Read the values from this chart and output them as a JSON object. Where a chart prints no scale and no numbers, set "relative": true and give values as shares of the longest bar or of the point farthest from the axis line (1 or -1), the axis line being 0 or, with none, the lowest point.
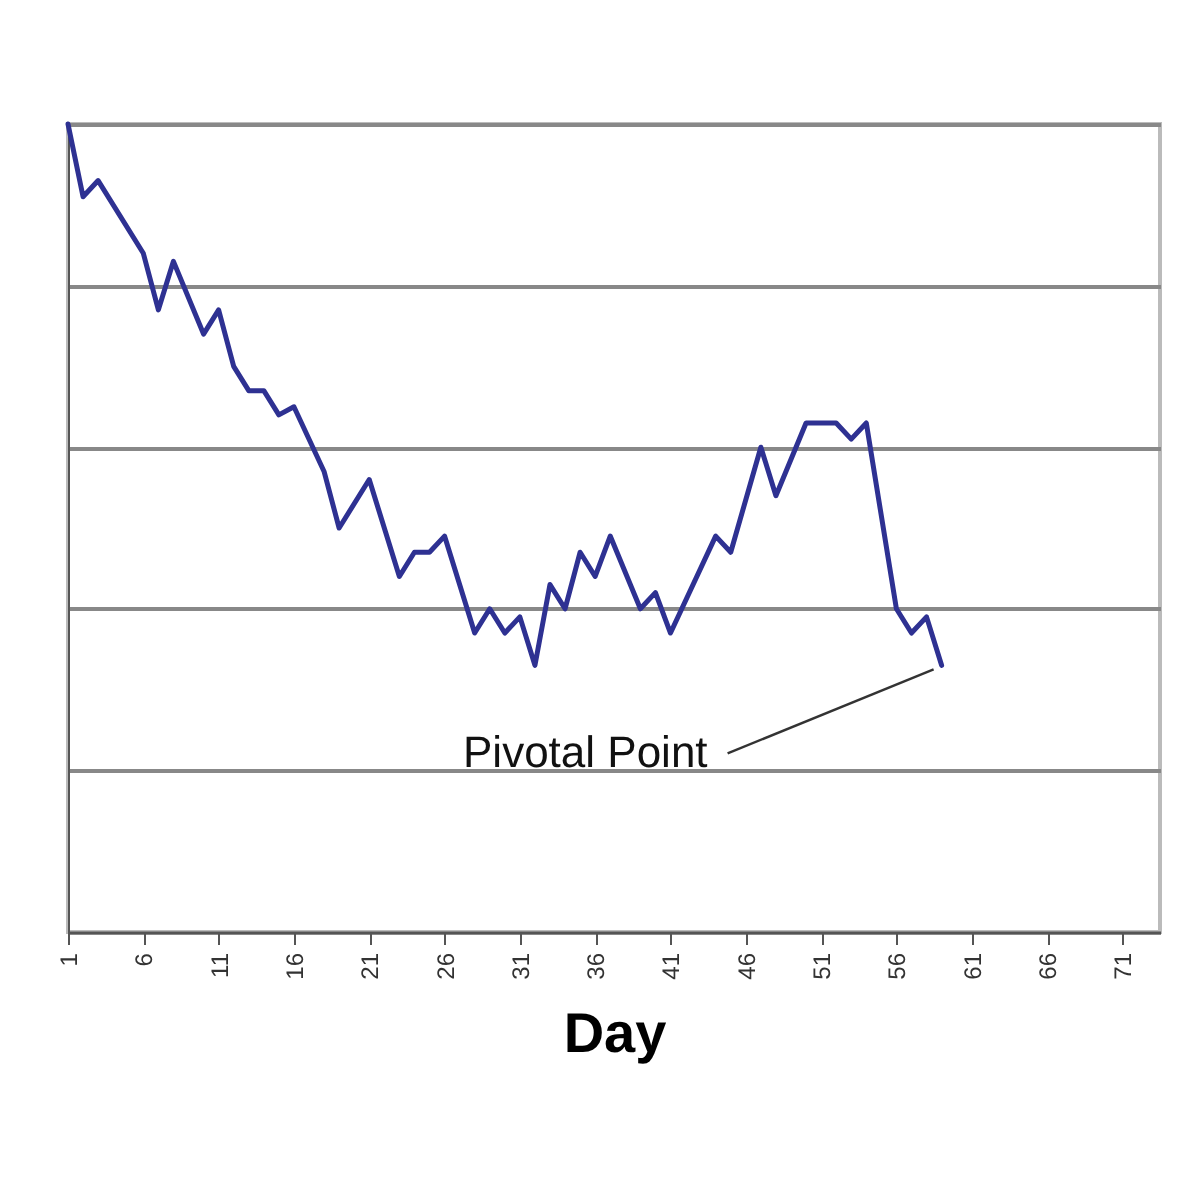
{
  "chart_data": {
    "type": "line",
    "xlabel": "Day",
    "relative": true,
    "grid": "y",
    "marker": "none",
    "line_style": "solid",
    "x": [
      1,
      2,
      3,
      6,
      7,
      8,
      10,
      11,
      12,
      13,
      14,
      15,
      16,
      18,
      19,
      21,
      23,
      24,
      25,
      26,
      28,
      29,
      30,
      31,
      32,
      33,
      34,
      35,
      36,
      37,
      39,
      40,
      41,
      44,
      45,
      47,
      48,
      50,
      52,
      53,
      54,
      56,
      57,
      58,
      59
    ],
    "xlim": [
      1,
      73.5
    ],
    "xticks": [
      1,
      6,
      11,
      16,
      21,
      26,
      31,
      36,
      41,
      46,
      51,
      56,
      61,
      66,
      71
    ],
    "series": [
      {
        "color": "#2e3192",
        "values": [
          1.0,
          0.91,
          0.93,
          0.84,
          0.77,
          0.83,
          0.74,
          0.77,
          0.7,
          0.67,
          0.67,
          0.64,
          0.65,
          0.57,
          0.5,
          0.56,
          0.44,
          0.47,
          0.47,
          0.49,
          0.37,
          0.4,
          0.37,
          0.39,
          0.33,
          0.43,
          0.4,
          0.47,
          0.44,
          0.49,
          0.4,
          0.42,
          0.37,
          0.49,
          0.47,
          0.6,
          0.54,
          0.63,
          0.63,
          0.61,
          0.63,
          0.4,
          0.37,
          0.39,
          0.33
        ]
      }
    ],
    "annotations": [
      {
        "text": "Pivotal Point",
        "x": 59,
        "y": 0.33
      }
    ]
  }
}
